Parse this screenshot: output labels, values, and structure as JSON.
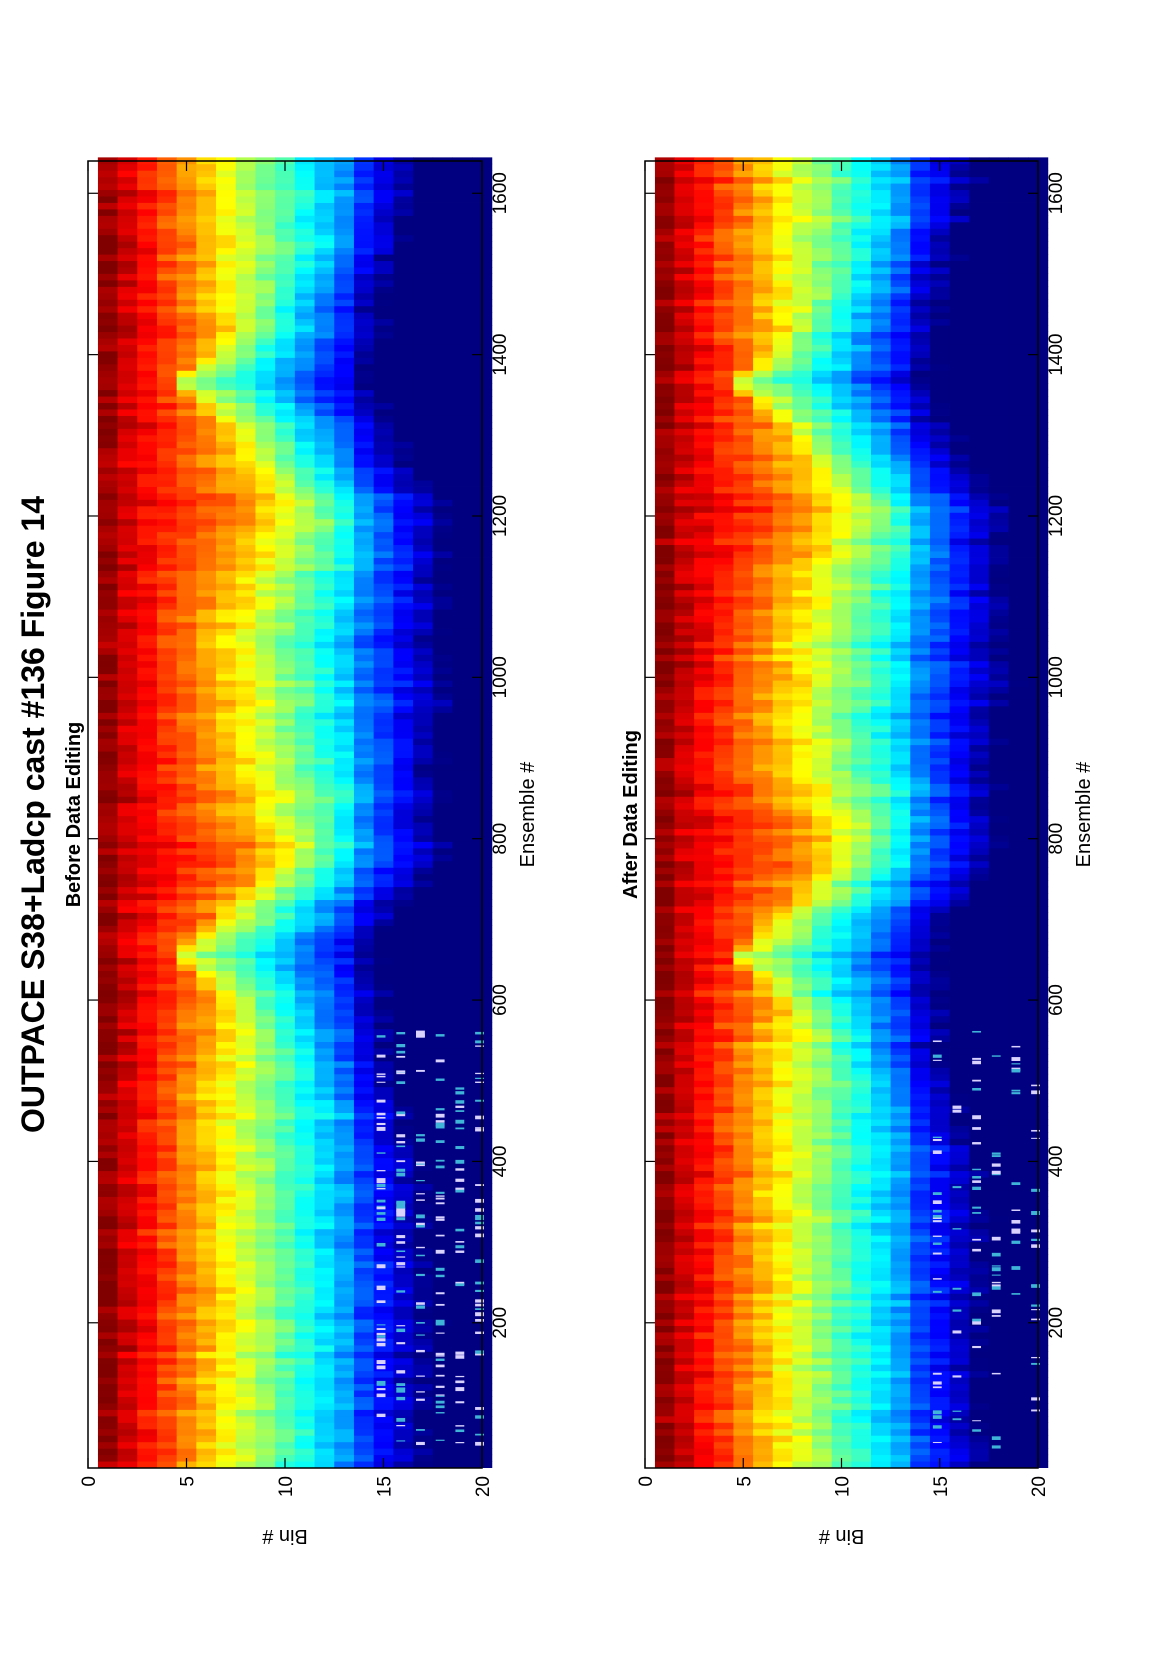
{
  "figure": {
    "title": "OUTPACE S38+Ladcp cast #136  Figure 14"
  },
  "chart_data": [
    {
      "type": "heatmap",
      "title": "Before Data Editing",
      "xlabel": "Ensemble #",
      "ylabel": "Bin #",
      "xlim": [
        20,
        1640
      ],
      "ylim": [
        0,
        20
      ],
      "y_reversed": true,
      "xticks": [
        200,
        400,
        600,
        800,
        1000,
        1200,
        1400,
        1600
      ],
      "yticks": [
        0,
        5,
        10,
        15,
        20
      ],
      "colormap": "jet",
      "grid": false,
      "bins": [
        1,
        20
      ],
      "features": {
        "low_echo_wedges_center_ensemble": [
          650,
          1360
        ],
        "high_echo_peaks_ensemble": [
          780,
          1200
        ],
        "deep_outliers_ensemble_range": [
          40,
          560
        ]
      }
    },
    {
      "type": "heatmap",
      "title": "After Data Editing",
      "xlabel": "Ensemble #",
      "ylabel": "Bin #",
      "xlim": [
        20,
        1640
      ],
      "ylim": [
        0,
        20
      ],
      "y_reversed": true,
      "xticks": [
        200,
        400,
        600,
        800,
        1000,
        1200,
        1400,
        1600
      ],
      "yticks": [
        0,
        5,
        10,
        15,
        20
      ],
      "colormap": "jet",
      "grid": false,
      "bins": [
        1,
        20
      ],
      "features": {
        "low_echo_wedges_center_ensemble": [
          650,
          1360
        ],
        "high_echo_peaks_ensemble": [
          780,
          1200
        ],
        "deep_outliers_ensemble_range": [
          40,
          560
        ]
      }
    }
  ]
}
